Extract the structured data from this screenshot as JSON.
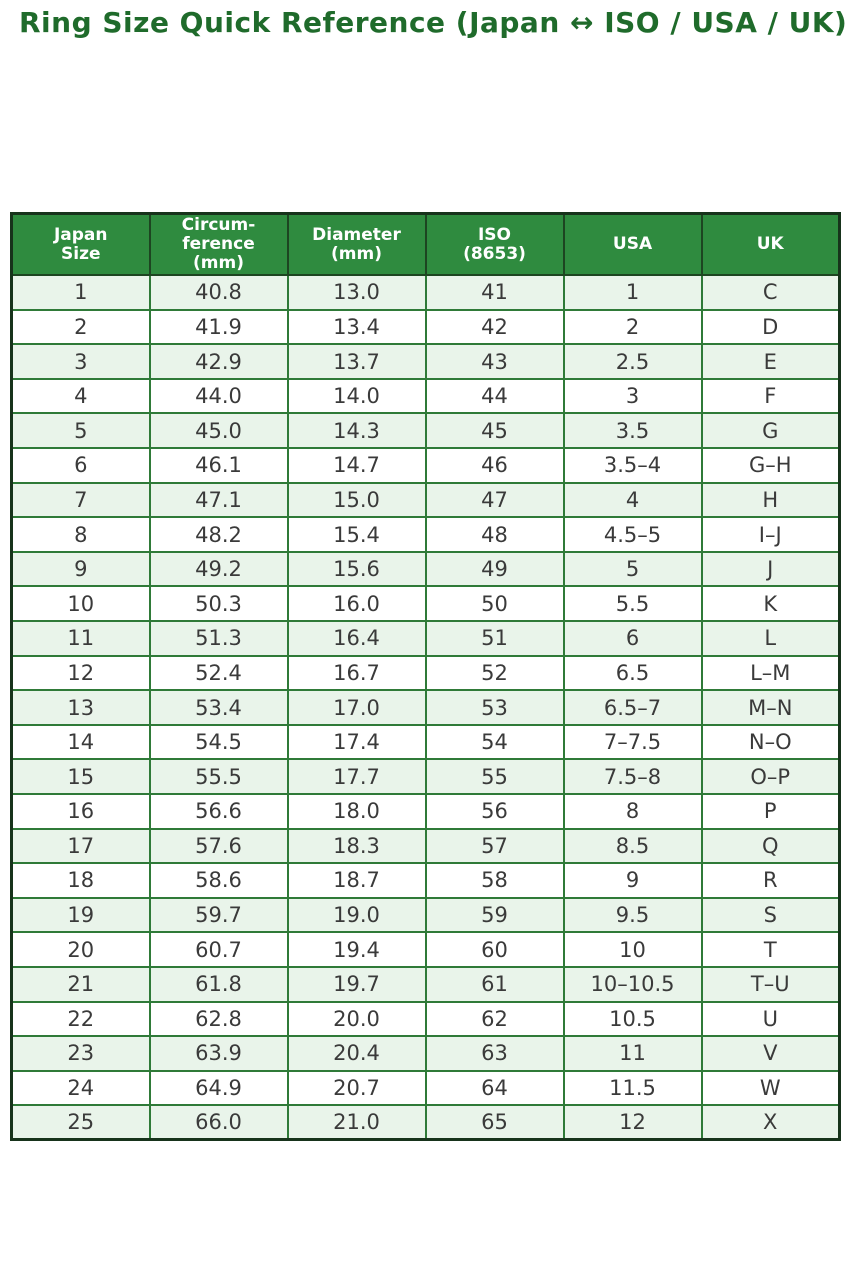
{
  "chart_data": {
    "type": "table",
    "title": "Ring Size Quick Reference (Japan ↔ ISO / USA / UK)",
    "columns": [
      "Japan\nSize",
      "Circum-\nference\n(mm)",
      "Diameter\n(mm)",
      "ISO\n(8653)",
      "USA",
      "UK"
    ],
    "rows": [
      [
        "1",
        "40.8",
        "13.0",
        "41",
        "1",
        "C"
      ],
      [
        "2",
        "41.9",
        "13.4",
        "42",
        "2",
        "D"
      ],
      [
        "3",
        "42.9",
        "13.7",
        "43",
        "2.5",
        "E"
      ],
      [
        "4",
        "44.0",
        "14.0",
        "44",
        "3",
        "F"
      ],
      [
        "5",
        "45.0",
        "14.3",
        "45",
        "3.5",
        "G"
      ],
      [
        "6",
        "46.1",
        "14.7",
        "46",
        "3.5–4",
        "G–H"
      ],
      [
        "7",
        "47.1",
        "15.0",
        "47",
        "4",
        "H"
      ],
      [
        "8",
        "48.2",
        "15.4",
        "48",
        "4.5–5",
        "I–J"
      ],
      [
        "9",
        "49.2",
        "15.6",
        "49",
        "5",
        "J"
      ],
      [
        "10",
        "50.3",
        "16.0",
        "50",
        "5.5",
        "K"
      ],
      [
        "11",
        "51.3",
        "16.4",
        "51",
        "6",
        "L"
      ],
      [
        "12",
        "52.4",
        "16.7",
        "52",
        "6.5",
        "L–M"
      ],
      [
        "13",
        "53.4",
        "17.0",
        "53",
        "6.5–7",
        "M–N"
      ],
      [
        "14",
        "54.5",
        "17.4",
        "54",
        "7–7.5",
        "N–O"
      ],
      [
        "15",
        "55.5",
        "17.7",
        "55",
        "7.5–8",
        "O–P"
      ],
      [
        "16",
        "56.6",
        "18.0",
        "56",
        "8",
        "P"
      ],
      [
        "17",
        "57.6",
        "18.3",
        "57",
        "8.5",
        "Q"
      ],
      [
        "18",
        "58.6",
        "18.7",
        "58",
        "9",
        "R"
      ],
      [
        "19",
        "59.7",
        "19.0",
        "59",
        "9.5",
        "S"
      ],
      [
        "20",
        "60.7",
        "19.4",
        "60",
        "10",
        "T"
      ],
      [
        "21",
        "61.8",
        "19.7",
        "61",
        "10–10.5",
        "T–U"
      ],
      [
        "22",
        "62.8",
        "20.0",
        "62",
        "10.5",
        "U"
      ],
      [
        "23",
        "63.9",
        "20.4",
        "63",
        "11",
        "V"
      ],
      [
        "24",
        "64.9",
        "20.7",
        "64",
        "11.5",
        "W"
      ],
      [
        "25",
        "66.0",
        "21.0",
        "65",
        "12",
        "X"
      ]
    ],
    "layout": {
      "header_bg": "#2f8b3f",
      "header_text": "#ffffff",
      "odd_row_bg": "#e9f4ea",
      "even_row_bg": "#ffffff",
      "inner_border": "#2f7a38",
      "outer_border": "#17331b",
      "title_color": "#1f6b2b",
      "body_text": "#3a3a3a",
      "striping": "odd rows tinted green, first data row tinted"
    }
  }
}
